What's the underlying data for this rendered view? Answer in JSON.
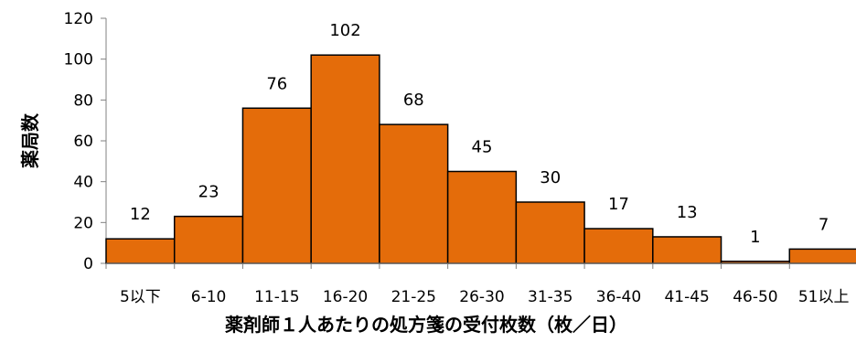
{
  "chart_data": {
    "type": "bar",
    "title": "",
    "xlabel": "薬剤師１人あたりの処方箋の受付枚数（枚／日）",
    "ylabel": "薬局数",
    "categories": [
      "5以下",
      "6-10",
      "11-15",
      "16-20",
      "21-25",
      "26-30",
      "31-35",
      "36-40",
      "41-45",
      "46-50",
      "51以上"
    ],
    "values": [
      12,
      23,
      76,
      102,
      68,
      45,
      30,
      17,
      13,
      1,
      7
    ],
    "data_labels": [
      "12",
      "23",
      "76",
      "102",
      "68",
      "45",
      "30",
      "17",
      "13",
      "1",
      "7"
    ],
    "ylim": [
      0,
      120
    ],
    "yticks": [
      0,
      20,
      40,
      60,
      80,
      100,
      120
    ],
    "bar_color": "#E46C0A",
    "grid": false,
    "legend": "none"
  }
}
